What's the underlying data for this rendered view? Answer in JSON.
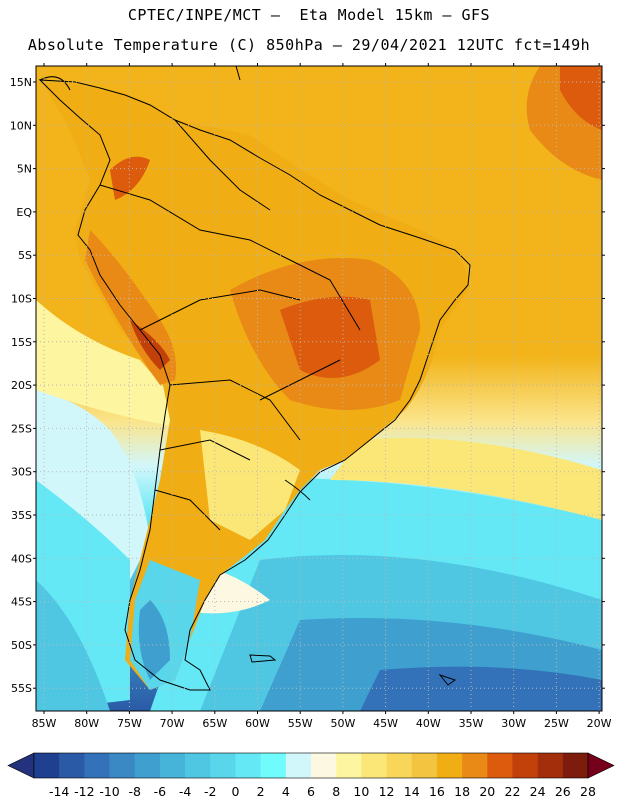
{
  "title_line1": "CPTEC/INPE/MCT –  Eta Model 15km – GFS",
  "title_line2": "Absolute Temperature (C) 850hPa – 29/04/2021 12UTC fct=149h",
  "lat_labels": [
    "15N",
    "10N",
    "5N",
    "EQ",
    "5S",
    "10S",
    "15S",
    "20S",
    "25S",
    "30S",
    "35S",
    "40S",
    "45S",
    "50S",
    "55S"
  ],
  "lon_labels": [
    "85W",
    "80W",
    "75W",
    "70W",
    "65W",
    "60W",
    "55W",
    "50W",
    "45W",
    "40W",
    "35W",
    "30W",
    "25W",
    "20W"
  ],
  "colorbar": {
    "labels": [
      "-14",
      "-12",
      "-10",
      "-8",
      "-6",
      "-4",
      "-2",
      "0",
      "2",
      "4",
      "6",
      "8",
      "10",
      "12",
      "14",
      "16",
      "18",
      "20",
      "22",
      "24",
      "26",
      "28"
    ],
    "colors": [
      "#1f3f8f",
      "#2a5aa6",
      "#3372b8",
      "#3a88c4",
      "#3f9fcf",
      "#46b4d9",
      "#4fc7e3",
      "#5ad6ea",
      "#64e8f5",
      "#70fbfd",
      "#d2f7fb",
      "#fdf8e1",
      "#fdf5a0",
      "#fbe778",
      "#f7d65a",
      "#f2c43f",
      "#f0ad14",
      "#e98a16",
      "#dc5b0c",
      "#c2400a",
      "#a32e0b",
      "#7d1b0c"
    ],
    "under_color": "#24327e",
    "over_color": "#76001b"
  }
}
